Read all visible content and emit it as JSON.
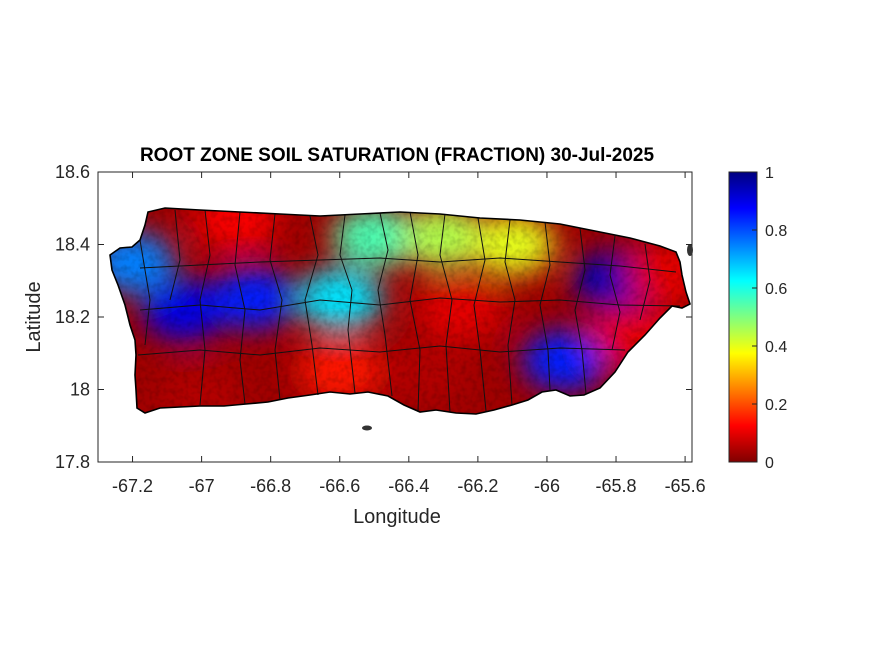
{
  "title": "ROOT ZONE SOIL SATURATION (FRACTION) 30-Jul-2025",
  "xlabel": "Longitude",
  "ylabel": "Latitude",
  "x_ticks": [
    "-67.2",
    "-67",
    "-66.8",
    "-66.6",
    "-66.4",
    "-66.2",
    "-66",
    "-65.8",
    "-65.6"
  ],
  "y_ticks": [
    "18.6",
    "18.4",
    "18.2",
    "18",
    "17.8"
  ],
  "colorbar": {
    "ticks": [
      "1",
      "0.8",
      "0.6",
      "0.4",
      "0.2",
      "0"
    ],
    "colormap": "jet",
    "range": [
      0,
      1
    ]
  },
  "chart_data": {
    "type": "heatmap",
    "title": "ROOT ZONE SOIL SATURATION (FRACTION) 30-Jul-2025",
    "xlabel": "Longitude",
    "ylabel": "Latitude",
    "xlim": [
      -67.3,
      -65.58
    ],
    "ylim": [
      17.8,
      18.6
    ],
    "clim": [
      0,
      1
    ],
    "colormap": "jet",
    "grid": false,
    "region": "Puerto Rico",
    "regional_values": [
      {
        "lon": -67.05,
        "lat": 18.22,
        "value": 0.9
      },
      {
        "lon": -66.85,
        "lat": 18.25,
        "value": 0.85
      },
      {
        "lon": -67.2,
        "lat": 18.35,
        "value": 0.75
      },
      {
        "lon": -66.6,
        "lat": 18.25,
        "value": 0.65
      },
      {
        "lon": -66.5,
        "lat": 18.42,
        "value": 0.55
      },
      {
        "lon": -66.3,
        "lat": 18.42,
        "value": 0.45
      },
      {
        "lon": -66.1,
        "lat": 18.4,
        "value": 0.4
      },
      {
        "lon": -66.25,
        "lat": 18.22,
        "value": 0.1
      },
      {
        "lon": -66.35,
        "lat": 18.05,
        "value": 0.05
      },
      {
        "lon": -66.9,
        "lat": 18.47,
        "value": 0.12
      },
      {
        "lon": -67.0,
        "lat": 17.98,
        "value": 0.05
      },
      {
        "lon": -66.6,
        "lat": 18.05,
        "value": 0.15
      },
      {
        "lon": -65.95,
        "lat": 18.08,
        "value": 0.85
      },
      {
        "lon": -65.8,
        "lat": 18.3,
        "value": 0.95
      },
      {
        "lon": -65.75,
        "lat": 18.15,
        "value": 0.1
      },
      {
        "lon": -65.65,
        "lat": 18.32,
        "value": 0.1
      }
    ]
  }
}
